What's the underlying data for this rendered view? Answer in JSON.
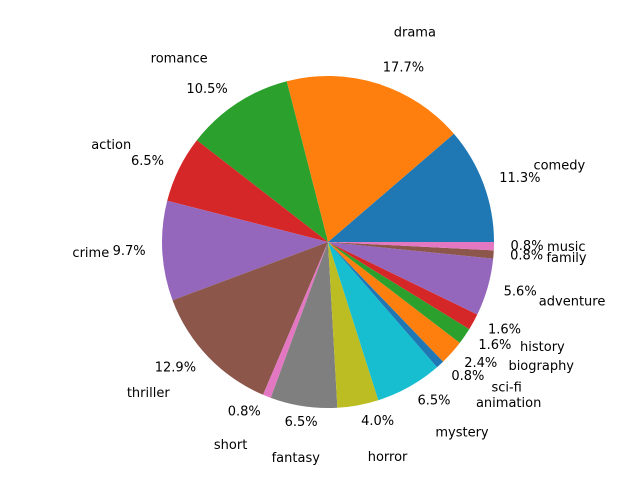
{
  "chart_data": {
    "type": "pie",
    "title": "",
    "start_angle_deg": 0,
    "direction": "counterclockwise",
    "slices": [
      {
        "label": "comedy",
        "value": 11.3,
        "pct_label": "11.3%",
        "color": "#1f77b4"
      },
      {
        "label": "drama",
        "value": 17.7,
        "pct_label": "17.7%",
        "color": "#ff7f0e"
      },
      {
        "label": "romance",
        "value": 10.5,
        "pct_label": "10.5%",
        "color": "#2ca02c"
      },
      {
        "label": "action",
        "value": 6.5,
        "pct_label": "6.5%",
        "color": "#d62728"
      },
      {
        "label": "crime",
        "value": 9.7,
        "pct_label": "9.7%",
        "color": "#9467bd"
      },
      {
        "label": "thriller",
        "value": 12.9,
        "pct_label": "12.9%",
        "color": "#8c564b"
      },
      {
        "label": "short",
        "value": 0.8,
        "pct_label": "0.8%",
        "color": "#e377c2"
      },
      {
        "label": "fantasy",
        "value": 6.5,
        "pct_label": "6.5%",
        "color": "#7f7f7f"
      },
      {
        "label": "horror",
        "value": 4.0,
        "pct_label": "4.0%",
        "color": "#bcbd22"
      },
      {
        "label": "mystery",
        "value": 6.5,
        "pct_label": "6.5%",
        "color": "#17becf"
      },
      {
        "label": "animation",
        "value": 0.8,
        "pct_label": "0.8%",
        "color": "#1f77b4"
      },
      {
        "label": "sci-fi",
        "value": 2.4,
        "pct_label": "2.4%",
        "color": "#ff7f0e"
      },
      {
        "label": "biography",
        "value": 1.6,
        "pct_label": "1.6%",
        "color": "#2ca02c"
      },
      {
        "label": "history",
        "value": 1.6,
        "pct_label": "1.6%",
        "color": "#d62728"
      },
      {
        "label": "adventure",
        "value": 5.6,
        "pct_label": "5.6%",
        "color": "#9467bd"
      },
      {
        "label": "family",
        "value": 0.8,
        "pct_label": "0.8%",
        "color": "#8c564b"
      },
      {
        "label": "music",
        "value": 0.8,
        "pct_label": "0.8%",
        "color": "#e377c2"
      }
    ]
  }
}
